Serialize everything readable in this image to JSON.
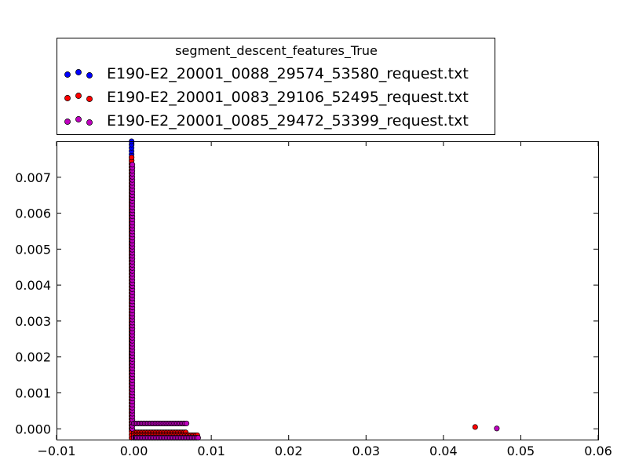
{
  "chart_data": {
    "type": "scatter",
    "title": "",
    "xlabel": "",
    "ylabel": "",
    "xlim": [
      -0.01,
      0.06
    ],
    "ylim": [
      -0.0003,
      0.008
    ],
    "xticks": [
      -0.01,
      0.0,
      0.01,
      0.02,
      0.03,
      0.04,
      0.05,
      0.06
    ],
    "xtick_labels": [
      "−0.01",
      "0.00",
      "0.01",
      "0.02",
      "0.03",
      "0.04",
      "0.05",
      "0.06"
    ],
    "yticks": [
      0.0,
      0.001,
      0.002,
      0.003,
      0.004,
      0.005,
      0.006,
      0.007
    ],
    "ytick_labels": [
      "0.000",
      "0.001",
      "0.002",
      "0.003",
      "0.004",
      "0.005",
      "0.006",
      "0.007"
    ],
    "grid": false,
    "legend": {
      "title": "segment_descent_features_True",
      "placement": "above-top"
    },
    "series": [
      {
        "name": "E190-E2_20001_0088_29574_53580_request.txt",
        "color": "#0000ff",
        "vertical": {
          "x": -0.0003,
          "y_from": 0.0,
          "y_to": 0.008,
          "count": 90
        },
        "horizontals": [],
        "outliers": []
      },
      {
        "name": "E190-E2_20001_0083_29106_52495_request.txt",
        "color": "#ff0000",
        "vertical": {
          "x": -0.0003,
          "y_from": -0.00025,
          "y_to": 0.00755,
          "count": 90
        },
        "horizontals": [
          {
            "y": -0.0001,
            "x_from": 0.0,
            "x_to": 0.0067,
            "count": 34
          },
          {
            "y": -0.00018,
            "x_from": 0.0,
            "x_to": 0.0082,
            "count": 42
          }
        ],
        "outliers": [
          {
            "x": 0.0441,
            "y": 5e-05
          }
        ]
      },
      {
        "name": "E190-E2_20001_0085_29472_53399_request.txt",
        "color": "#bf00bf",
        "vertical": {
          "x": -0.0002,
          "y_from": 0.0,
          "y_to": 0.00735,
          "count": 88
        },
        "horizontals": [
          {
            "y": 0.00015,
            "x_from": 0.0,
            "x_to": 0.0068,
            "count": 35
          },
          {
            "y": -0.00025,
            "x_from": 0.0,
            "x_to": 0.0083,
            "count": 42
          }
        ],
        "outliers": [
          {
            "x": 0.0469,
            "y": 1e-05
          }
        ]
      }
    ]
  }
}
